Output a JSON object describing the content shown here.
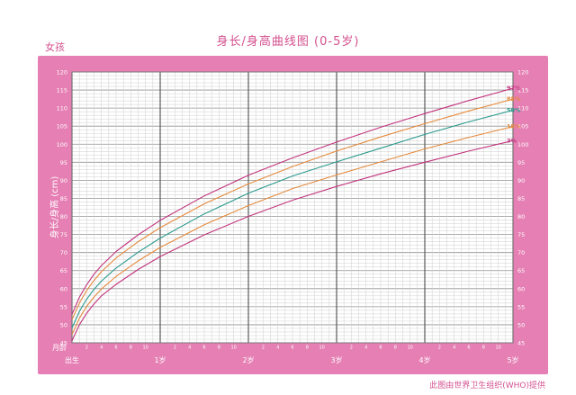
{
  "page": {
    "title": "身长/身高曲线图 (0-5岁)",
    "gender_label": "女孩",
    "credit": "此图由世界卫生组织(WHO)提供",
    "colors": {
      "brand_pink": "#d4508f",
      "frame": "#e57fb4",
      "grid": "#b0b0b0",
      "p97": "#c2337d",
      "p85": "#e58a3c",
      "p50": "#2a9a8e",
      "p15": "#e58a3c",
      "p3": "#c2337d"
    }
  },
  "chart_data": {
    "type": "line",
    "title": "身长/身高曲线图 (0-5岁)",
    "ylabel": "身长/身高 (cm)",
    "xlabel": "月龄",
    "ylim": [
      45,
      120
    ],
    "xlim": [
      0,
      60
    ],
    "y_ticks": [
      45,
      50,
      55,
      60,
      65,
      70,
      75,
      80,
      85,
      90,
      95,
      100,
      105,
      110,
      115,
      120
    ],
    "x_minor_labels": [
      "2",
      "4",
      "6",
      "8",
      "10"
    ],
    "x_major_labels": [
      {
        "month": 0,
        "label": "出生"
      },
      {
        "month": 12,
        "label": "1岁"
      },
      {
        "month": 24,
        "label": "2岁"
      },
      {
        "month": 36,
        "label": "3岁"
      },
      {
        "month": 48,
        "label": "4岁"
      },
      {
        "month": 60,
        "label": "5岁"
      }
    ],
    "grid": true,
    "x": [
      0,
      1,
      2,
      3,
      4,
      6,
      9,
      12,
      18,
      24,
      30,
      36,
      42,
      48,
      54,
      60
    ],
    "series": [
      {
        "name": "97%",
        "color": "#c2337d",
        "values": [
          52.9,
          57.6,
          61.1,
          64.0,
          66.4,
          70.3,
          74.9,
          78.9,
          85.7,
          91.4,
          96.2,
          100.6,
          104.7,
          108.5,
          112.1,
          115.5
        ]
      },
      {
        "name": "85%",
        "color": "#e58a3c",
        "values": [
          51.4,
          56.0,
          59.5,
          62.3,
          64.7,
          68.5,
          73.0,
          76.9,
          83.5,
          89.0,
          93.8,
          98.1,
          102.0,
          105.7,
          109.2,
          112.5
        ]
      },
      {
        "name": "50%",
        "color": "#2a9a8e",
        "values": [
          49.1,
          53.7,
          57.1,
          59.8,
          62.1,
          65.7,
          70.1,
          74.0,
          80.7,
          86.4,
          91.2,
          95.1,
          98.9,
          102.7,
          106.2,
          109.4
        ]
      },
      {
        "name": "15%",
        "color": "#e58a3c",
        "values": [
          47.3,
          51.8,
          55.1,
          57.7,
          59.9,
          63.4,
          67.7,
          71.4,
          77.7,
          83.0,
          87.7,
          91.5,
          95.1,
          98.7,
          101.9,
          104.9
        ]
      },
      {
        "name": "3%",
        "color": "#c2337d",
        "values": [
          45.6,
          50.0,
          53.2,
          55.8,
          58.0,
          61.2,
          65.3,
          68.9,
          74.9,
          80.0,
          84.5,
          88.3,
          91.8,
          95.0,
          98.1,
          101.0
        ]
      }
    ]
  }
}
